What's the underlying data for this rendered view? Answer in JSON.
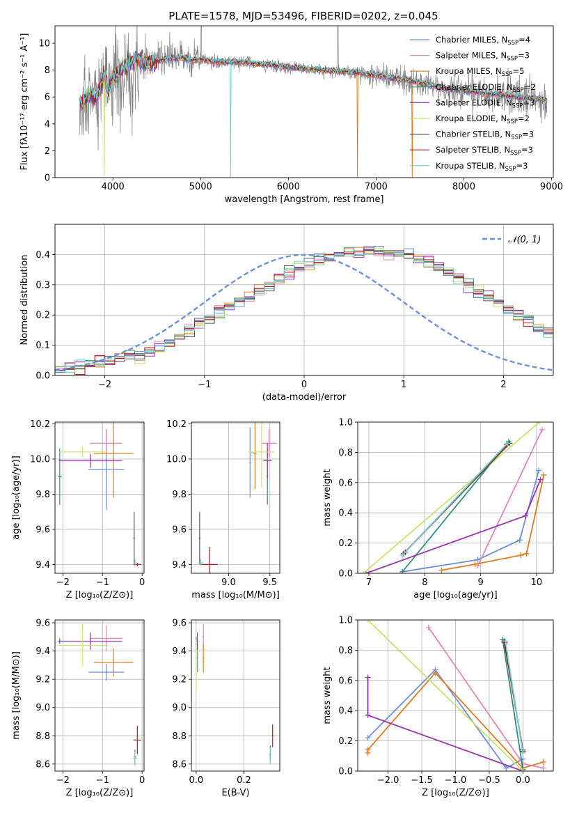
{
  "figure_title": "PLATE=1578, MJD=53496, FIBERID=0202, z=0.045",
  "colors": {
    "Chabrier MILES": "#6a8fdb",
    "Salpeter MILES": "#e584b8",
    "Kroupa MILES": "#e07b22",
    "Chabrier ELODIE": "#2f8f7f",
    "Salpeter ELODIE": "#9634b2",
    "Kroupa ELODIE": "#c7e36b",
    "Chabrier STELIB": "#555555",
    "Salpeter STELIB": "#b51616",
    "Kroupa STELIB": "#72cfd6",
    "data": "#808080"
  },
  "chart_data": [
    {
      "id": "spectrum",
      "type": "line",
      "title": "PLATE=1578, MJD=53496, FIBERID=0202, z=0.045",
      "xlabel": "wavelength [Angstrom, rest frame]",
      "ylabel": "Flux [fλ10⁻¹⁷ erg cm⁻² s⁻¹ A⁻¹]",
      "xlim": [
        3340,
        9020
      ],
      "ylim": [
        0,
        11.3
      ],
      "xticks": [
        4000,
        5000,
        6000,
        7000,
        8000,
        9000
      ],
      "yticks": [
        0,
        2,
        4,
        6,
        8,
        10
      ],
      "grid": false,
      "legend_position": "right",
      "legend": [
        {
          "label": "Chabrier MILES, N",
          "sub": "SSP",
          "suffix": "=4"
        },
        {
          "label": "Salpeter MILES, N",
          "sub": "SSP",
          "suffix": "=3"
        },
        {
          "label": "Kroupa MILES, N",
          "sub": "SSP",
          "suffix": "=5"
        },
        {
          "label": "Chabrier ELODIE, N",
          "sub": "SSP",
          "suffix": "=2"
        },
        {
          "label": "Salpeter ELODIE, N",
          "sub": "SSP",
          "suffix": "=3"
        },
        {
          "label": "Kroupa ELODIE, N",
          "sub": "SSP",
          "suffix": "=2"
        },
        {
          "label": "Chabrier STELIB, N",
          "sub": "SSP",
          "suffix": "=3"
        },
        {
          "label": "Salpeter STELIB, N",
          "sub": "SSP",
          "suffix": "=3"
        },
        {
          "label": "Kroupa STELIB, N",
          "sub": "SSP",
          "suffix": "=3"
        }
      ],
      "continuum": {
        "x": [
          3620,
          3650,
          3700,
          3750,
          3800,
          3850,
          3900,
          3950,
          4000,
          4100,
          4200,
          4300,
          4400,
          4500,
          4600,
          4700,
          4800,
          4900,
          5000,
          5200,
          5400,
          5600,
          5800,
          6000,
          6200,
          6400,
          6600,
          6800,
          7000,
          7200,
          7400,
          7600,
          7800,
          8000,
          8200,
          8400,
          8600,
          8800,
          8950
        ],
        "y": [
          5.6,
          5.5,
          5.9,
          6.2,
          6.0,
          6.4,
          7.6,
          6.4,
          7.3,
          8.1,
          8.6,
          8.8,
          8.5,
          8.7,
          8.8,
          8.9,
          8.9,
          8.7,
          8.8,
          8.6,
          8.6,
          8.5,
          8.4,
          8.2,
          8.1,
          8.0,
          7.9,
          7.8,
          7.6,
          7.4,
          7.2,
          6.9,
          6.6,
          6.5,
          6.3,
          6.2,
          6.0,
          5.9,
          5.7
        ]
      },
      "model_dropouts": [
        {
          "series": "Kroupa ELODIE",
          "x": 3900
        },
        {
          "series": "Kroupa STELIB",
          "x": 5340
        },
        {
          "series": "Kroupa MILES",
          "x": 6790
        },
        {
          "series": "Kroupa MILES",
          "x": 7410
        }
      ]
    },
    {
      "id": "residuals",
      "type": "line",
      "xlabel": "(data-model)/error",
      "ylabel": "Normed distribution",
      "xlim": [
        -2.5,
        2.5
      ],
      "ylim": [
        0,
        0.5
      ],
      "xticks": [
        -2,
        -1,
        0,
        1,
        2
      ],
      "yticks": [
        0.0,
        0.1,
        0.2,
        0.3,
        0.4
      ],
      "grid": true,
      "legend_position": "top-right",
      "legend": "𝒩(0, 1)",
      "bin_width": 0.1,
      "bins_start": -2.5,
      "histogram": [
        0.02,
        0.025,
        0.03,
        0.035,
        0.045,
        0.05,
        0.06,
        0.065,
        0.07,
        0.08,
        0.09,
        0.11,
        0.13,
        0.15,
        0.17,
        0.19,
        0.21,
        0.23,
        0.245,
        0.26,
        0.28,
        0.3,
        0.32,
        0.345,
        0.36,
        0.37,
        0.38,
        0.385,
        0.395,
        0.4,
        0.405,
        0.41,
        0.41,
        0.405,
        0.4,
        0.395,
        0.385,
        0.375,
        0.36,
        0.345,
        0.32,
        0.3,
        0.28,
        0.26,
        0.245,
        0.225,
        0.2,
        0.18,
        0.16,
        0.145,
        0.13,
        0.11,
        0.095,
        0.08,
        0.07,
        0.06,
        0.05,
        0.045,
        0.04,
        0.035,
        0.03,
        0.03,
        0.025,
        0.022,
        0.02,
        0.02
      ]
    },
    {
      "id": "age-vs-Z",
      "type": "scatter",
      "xlabel": "Z [log₁₀(Z/Z⊙)]",
      "ylabel": "age  [log₁₀(age/yr)]",
      "xlim": [
        -2.2,
        0.05
      ],
      "ylim": [
        9.35,
        10.21
      ],
      "xticks": [
        -2,
        -1,
        0
      ],
      "yticks": [
        9.4,
        9.6,
        9.8,
        10.0,
        10.2
      ],
      "grid": true,
      "points": [
        {
          "series": "Chabrier MILES",
          "x": -0.9,
          "y": 9.94,
          "xerr": 0.45,
          "yerr": 0.23
        },
        {
          "series": "Salpeter MILES",
          "x": -0.9,
          "y": 10.09,
          "xerr": 0.4,
          "yerr": 0.08
        },
        {
          "series": "Kroupa MILES",
          "x": -0.72,
          "y": 10.03,
          "xerr": 0.5,
          "yerr": 0.25
        },
        {
          "series": "Chabrier ELODIE",
          "x": -2.08,
          "y": 9.9,
          "xerr": 0.05,
          "yerr": 0.16
        },
        {
          "series": "Salpeter ELODIE",
          "x": -1.3,
          "y": 9.99,
          "xerr": 0.8,
          "yerr": 0.04
        },
        {
          "series": "Kroupa ELODIE",
          "x": -1.5,
          "y": 10.04,
          "xerr": 0.6,
          "yerr": 0.03
        },
        {
          "series": "Chabrier STELIB",
          "x": -0.2,
          "y": 9.55,
          "xerr": 0.02,
          "yerr": 0.15
        },
        {
          "series": "Salpeter STELIB",
          "x": -0.12,
          "y": 9.4,
          "xerr": 0.1,
          "yerr": 0.01
        },
        {
          "series": "Kroupa STELIB",
          "x": -0.18,
          "y": 9.41,
          "xerr": 0.03,
          "yerr": 0.02
        }
      ]
    },
    {
      "id": "age-vs-mass",
      "type": "scatter",
      "xlabel": "mass [log₁₀(M/M⊙)]",
      "ylabel": "",
      "xlim": [
        8.55,
        9.62
      ],
      "ylim": [
        9.35,
        10.21
      ],
      "xticks": [
        9.0,
        9.5
      ],
      "yticks": [
        9.4,
        9.6,
        9.8,
        10.0,
        10.2
      ],
      "grid": true,
      "points": [
        {
          "series": "Chabrier MILES",
          "x": 9.26,
          "y": 9.98,
          "xerr": 0.01,
          "yerr": 0.2
        },
        {
          "series": "Salpeter MILES",
          "x": 9.49,
          "y": 10.09,
          "xerr": 0.09,
          "yerr": 0.08
        },
        {
          "series": "Kroupa MILES",
          "x": 9.32,
          "y": 10.03,
          "xerr": 0.02,
          "yerr": 0.2
        },
        {
          "series": "Chabrier ELODIE",
          "x": 9.47,
          "y": 9.9,
          "xerr": 0.01,
          "yerr": 0.16
        },
        {
          "series": "Salpeter ELODIE",
          "x": 9.47,
          "y": 9.99,
          "xerr": 0.05,
          "yerr": 0.1
        },
        {
          "series": "Kroupa ELODIE",
          "x": 9.4,
          "y": 10.04,
          "xerr": 0.16,
          "yerr": 0.2
        },
        {
          "series": "Chabrier STELIB",
          "x": 8.65,
          "y": 9.55,
          "xerr": 0.01,
          "yerr": 0.15
        },
        {
          "series": "Salpeter STELIB",
          "x": 8.77,
          "y": 9.4,
          "xerr": 0.1,
          "yerr": 0.1
        },
        {
          "series": "Kroupa STELIB",
          "x": 8.66,
          "y": 9.41,
          "xerr": 0.03,
          "yerr": 0.02
        }
      ]
    },
    {
      "id": "massweight-vs-age",
      "type": "line",
      "xlabel": "age  [log₁₀(age/yr)]",
      "ylabel": "mass weight",
      "xlim": [
        6.8,
        10.3
      ],
      "ylim": [
        0,
        1
      ],
      "xticks": [
        7,
        8,
        9,
        10
      ],
      "yticks": [
        0.0,
        0.2,
        0.4,
        0.6,
        0.8,
        1.0
      ],
      "grid": true,
      "series": [
        {
          "name": "Chabrier MILES",
          "x": [
            7.6,
            8.95,
            9.7,
            10.04
          ],
          "y": [
            0.01,
            0.09,
            0.22,
            0.68
          ]
        },
        {
          "name": "Salpeter MILES",
          "x": [
            8.95,
            10.1
          ],
          "y": [
            0.05,
            0.95
          ]
        },
        {
          "name": "Kroupa MILES",
          "x": [
            8.3,
            8.9,
            9.72,
            9.82,
            10.13
          ],
          "y": [
            0.02,
            0.06,
            0.12,
            0.13,
            0.65
          ]
        },
        {
          "name": "Chabrier ELODIE",
          "x": [
            7.6,
            9.5
          ],
          "y": [
            0.01,
            0.87
          ]
        },
        {
          "name": "Salpeter ELODIE",
          "x": [
            6.95,
            9.8,
            10.07
          ],
          "y": [
            0.0,
            0.38,
            0.62
          ]
        },
        {
          "name": "Kroupa ELODIE",
          "x": [
            6.9,
            10.05
          ],
          "y": [
            0.0,
            1.0
          ]
        },
        {
          "name": "Chabrier STELIB",
          "x": [
            7.65,
            9.52
          ],
          "y": [
            0.14,
            0.86
          ]
        },
        {
          "name": "Salpeter STELIB",
          "x": [
            7.62,
            9.47
          ],
          "y": [
            0.13,
            0.85
          ]
        },
        {
          "name": "Kroupa STELIB",
          "x": [
            7.6,
            9.48
          ],
          "y": [
            0.12,
            0.86
          ]
        }
      ]
    },
    {
      "id": "mass-vs-Z",
      "type": "scatter",
      "xlabel": "Z [log₁₀(Z/Z⊙)]",
      "ylabel": "mass [log₁₀(M/M⊙)]",
      "xlim": [
        -2.2,
        0.05
      ],
      "ylim": [
        8.55,
        9.62
      ],
      "xticks": [
        -2,
        -1,
        0
      ],
      "yticks": [
        8.6,
        8.8,
        9.0,
        9.2,
        9.4,
        9.6
      ],
      "grid": true,
      "points": [
        {
          "series": "Chabrier MILES",
          "x": -0.9,
          "y": 9.25,
          "xerr": 0.45,
          "yerr": 0.06
        },
        {
          "series": "Salpeter MILES",
          "x": -0.9,
          "y": 9.49,
          "xerr": 0.4,
          "yerr": 0.09
        },
        {
          "series": "Kroupa MILES",
          "x": -0.72,
          "y": 9.32,
          "xerr": 0.5,
          "yerr": 0.1
        },
        {
          "series": "Chabrier ELODIE",
          "x": -2.08,
          "y": 9.47,
          "xerr": 0.05,
          "yerr": 0.02
        },
        {
          "series": "Salpeter ELODIE",
          "x": -1.3,
          "y": 9.47,
          "xerr": 0.8,
          "yerr": 0.06
        },
        {
          "series": "Kroupa ELODIE",
          "x": -1.5,
          "y": 9.44,
          "xerr": 0.6,
          "yerr": 0.15
        },
        {
          "series": "Chabrier STELIB",
          "x": -0.18,
          "y": 8.65,
          "xerr": 0.03,
          "yerr": 0.05
        },
        {
          "series": "Salpeter STELIB",
          "x": -0.12,
          "y": 8.77,
          "xerr": 0.1,
          "yerr": 0.1
        },
        {
          "series": "Kroupa STELIB",
          "x": -0.18,
          "y": 8.64,
          "xerr": 0.05,
          "yerr": 0.05
        }
      ]
    },
    {
      "id": "mass-vs-EBV",
      "type": "scatter",
      "xlabel": "E(B-V)",
      "ylabel": "",
      "xlim": [
        -0.02,
        0.35
      ],
      "ylim": [
        8.55,
        9.62
      ],
      "xticks": [
        0.0,
        0.2
      ],
      "yticks": [
        8.6,
        8.8,
        9.0,
        9.2,
        9.4,
        9.6
      ],
      "grid": true,
      "points": [
        {
          "series": "Chabrier MILES",
          "x": 0.005,
          "y": 9.35,
          "xerr": 0.003,
          "yerr": 0.1
        },
        {
          "series": "Salpeter MILES",
          "x": 0.03,
          "y": 9.5,
          "xerr": 0.003,
          "yerr": 0.09
        },
        {
          "series": "Kroupa MILES",
          "x": 0.03,
          "y": 9.35,
          "xerr": 0.003,
          "yerr": 0.1
        },
        {
          "series": "Chabrier ELODIE",
          "x": 0.0,
          "y": 9.45,
          "xerr": 0.003,
          "yerr": 0.05
        },
        {
          "series": "Salpeter ELODIE",
          "x": 0.005,
          "y": 9.47,
          "xerr": 0.003,
          "yerr": 0.06
        },
        {
          "series": "Kroupa ELODIE",
          "x": 0.0,
          "y": 9.3,
          "xerr": 0.003,
          "yerr": 0.18
        },
        {
          "series": "Chabrier STELIB",
          "x": 0.31,
          "y": 8.67,
          "xerr": 0.003,
          "yerr": 0.06
        },
        {
          "series": "Salpeter STELIB",
          "x": 0.32,
          "y": 8.8,
          "xerr": 0.003,
          "yerr": 0.08
        },
        {
          "series": "Kroupa STELIB",
          "x": 0.31,
          "y": 8.66,
          "xerr": 0.003,
          "yerr": 0.06
        }
      ]
    },
    {
      "id": "massweight-vs-Z",
      "type": "line",
      "xlabel": "Z [log₁₀(Z/Z⊙)]",
      "ylabel": "mass weight",
      "xlim": [
        -2.45,
        0.45
      ],
      "ylim": [
        0,
        1
      ],
      "xticks": [
        -2.0,
        -1.5,
        -1.0,
        -0.5,
        0.0
      ],
      "yticks": [
        0.0,
        0.2,
        0.4,
        0.6,
        0.8,
        1.0
      ],
      "grid": true,
      "series": [
        {
          "name": "Chabrier MILES",
          "x": [
            -2.3,
            -1.3,
            -0.25,
            0.0
          ],
          "y": [
            0.22,
            0.67,
            0.02,
            0.08
          ]
        },
        {
          "name": "Salpeter MILES",
          "x": [
            -1.4,
            0.0,
            0.3
          ],
          "y": [
            0.95,
            0.05,
            0.02
          ]
        },
        {
          "name": "Kroupa MILES",
          "x": [
            -2.3,
            -2.3,
            -1.3,
            0.0,
            0.3
          ],
          "y": [
            0.12,
            0.14,
            0.65,
            0.02,
            0.06
          ]
        },
        {
          "name": "Chabrier ELODIE",
          "x": [
            -0.3,
            0.0
          ],
          "y": [
            0.87,
            0.01
          ]
        },
        {
          "name": "Salpeter ELODIE",
          "x": [
            -2.3,
            -2.3,
            0.0
          ],
          "y": [
            0.62,
            0.37,
            0.0
          ]
        },
        {
          "name": "Kroupa ELODIE",
          "x": [
            -2.3,
            0.0
          ],
          "y": [
            1.0,
            0.0
          ]
        },
        {
          "name": "Chabrier STELIB",
          "x": [
            -0.28,
            0.0
          ],
          "y": [
            0.86,
            0.14
          ]
        },
        {
          "name": "Salpeter STELIB",
          "x": [
            -0.27,
            0.0
          ],
          "y": [
            0.85,
            0.13
          ]
        },
        {
          "name": "Kroupa STELIB",
          "x": [
            -0.26,
            0.0
          ],
          "y": [
            0.86,
            0.12
          ]
        }
      ]
    }
  ]
}
